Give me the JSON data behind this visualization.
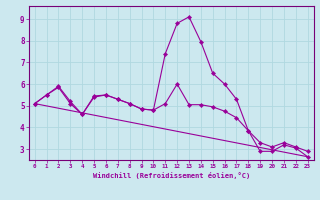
{
  "xlabel": "Windchill (Refroidissement éolien,°C)",
  "bg_color": "#cce8ef",
  "grid_color": "#b0d8e0",
  "line_color": "#990099",
  "spine_color": "#770077",
  "xlim": [
    -0.5,
    23.5
  ],
  "ylim": [
    2.5,
    9.6
  ],
  "yticks": [
    3,
    4,
    5,
    6,
    7,
    8,
    9
  ],
  "xticks": [
    0,
    1,
    2,
    3,
    4,
    5,
    6,
    7,
    8,
    9,
    10,
    11,
    12,
    13,
    14,
    15,
    16,
    17,
    18,
    19,
    20,
    21,
    22,
    23
  ],
  "line1_x": [
    0,
    1,
    2,
    3,
    4,
    5,
    6,
    7,
    8,
    9,
    10,
    11,
    12,
    13,
    14,
    15,
    16,
    17,
    18,
    19,
    20,
    21,
    22,
    23
  ],
  "line1_y": [
    5.1,
    5.5,
    5.9,
    5.2,
    4.6,
    5.4,
    5.5,
    5.3,
    5.1,
    4.85,
    4.8,
    7.4,
    8.8,
    9.1,
    7.95,
    6.5,
    6.0,
    5.3,
    3.85,
    2.9,
    2.9,
    3.2,
    3.05,
    2.65
  ],
  "line2_x": [
    0,
    1,
    2,
    3,
    4,
    5,
    6,
    7,
    8,
    9,
    10,
    11,
    12,
    13,
    14,
    15,
    16,
    17,
    18,
    19,
    20,
    21,
    22,
    23
  ],
  "line2_y": [
    5.1,
    5.5,
    5.85,
    5.1,
    4.6,
    5.45,
    5.5,
    5.3,
    5.1,
    4.85,
    4.8,
    5.1,
    6.0,
    5.05,
    5.05,
    4.95,
    4.75,
    4.45,
    3.85,
    3.3,
    3.1,
    3.3,
    3.1,
    2.9
  ],
  "line3_x": [
    0,
    23
  ],
  "line3_y": [
    5.1,
    2.65
  ]
}
